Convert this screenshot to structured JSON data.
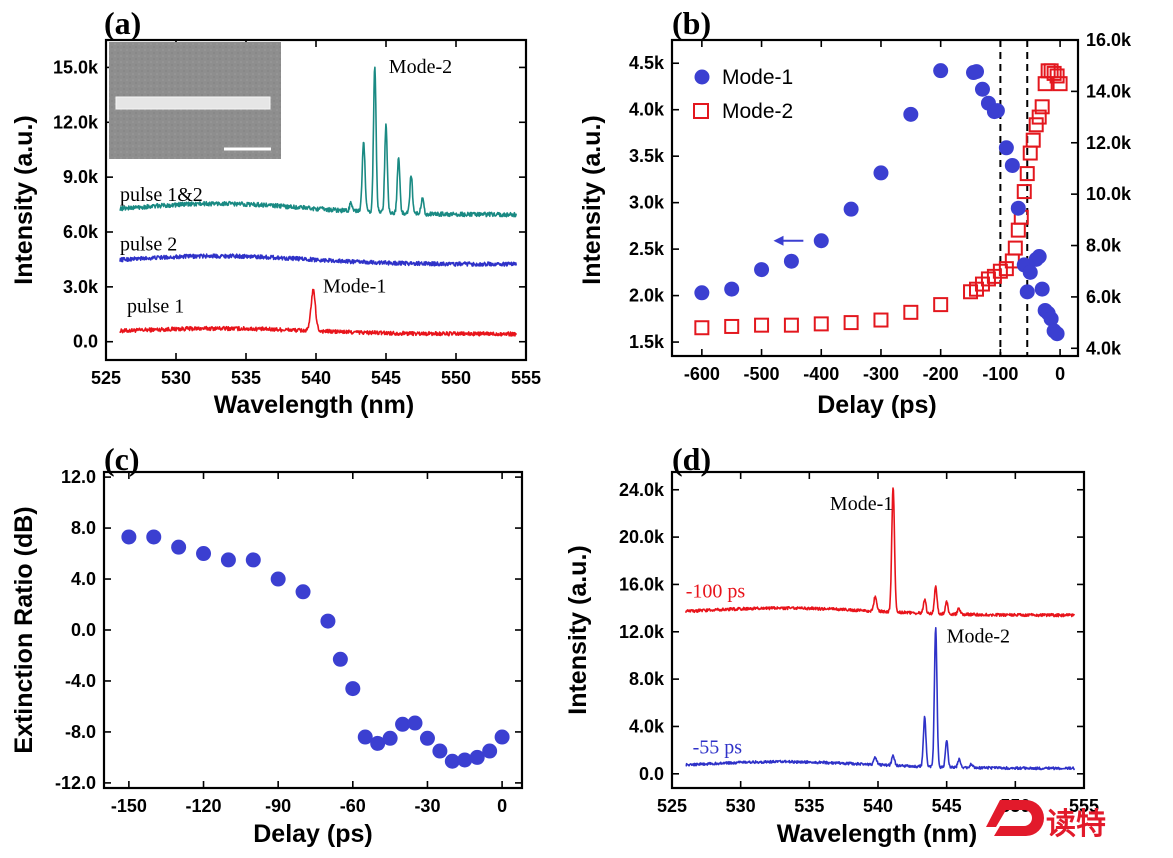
{
  "colors": {
    "red": "#e8141b",
    "blue": "#2f32c8",
    "teal": "#1a8a83",
    "blueMarker": "#3b3fd1",
    "redMarker": "#e3171e",
    "watermark": "#e21a2b"
  },
  "watermark": {
    "icon": "d-logo-icon",
    "text": "读特"
  },
  "chart_data": [
    {
      "panel": "(a)",
      "type": "line",
      "xlabel": "Wavelength (nm)",
      "ylabel": "Intensity (a.u.)",
      "xlim": [
        525,
        555
      ],
      "ylim": [
        -1000,
        16500
      ],
      "xticks": [
        525,
        530,
        535,
        540,
        545,
        550,
        555
      ],
      "xtick_labels": [
        "525",
        "530",
        "535",
        "540",
        "545",
        "550",
        "555"
      ],
      "yticks": [
        0,
        3000,
        6000,
        9000,
        12000,
        15000
      ],
      "ytick_labels": [
        "0.0",
        "3.0k",
        "6.0k",
        "9.0k",
        "12.0k",
        "15.0k"
      ],
      "inset": {
        "description_icon": "sem-image-icon"
      },
      "series": [
        {
          "name": "pulse 1",
          "color": "red",
          "baseline": 500,
          "hump": 300,
          "noise": 110,
          "peaks": [
            [
              539.8,
              2200,
              0.22
            ]
          ]
        },
        {
          "name": "pulse 2",
          "color": "blue",
          "baseline": 4350,
          "hump": 450,
          "noise": 110,
          "peaks": []
        },
        {
          "name": "pulse 1&2",
          "color": "teal",
          "baseline": 7100,
          "hump": 600,
          "noise": 120,
          "peaks": [
            [
              542.5,
              500,
              0.12
            ],
            [
              543.4,
              3800,
              0.14
            ],
            [
              544.2,
              8000,
              0.13
            ],
            [
              545.0,
              4800,
              0.13
            ],
            [
              545.9,
              3000,
              0.13
            ],
            [
              546.8,
              2100,
              0.13
            ],
            [
              547.6,
              900,
              0.13
            ]
          ]
        }
      ],
      "labels": [
        {
          "text": "pulse 1&2",
          "x": 526,
          "y": 7700
        },
        {
          "text": "pulse 2",
          "x": 526,
          "y": 5000
        },
        {
          "text": "pulse 1",
          "x": 526.5,
          "y": 1600
        },
        {
          "text": "Mode-1",
          "x": 540.5,
          "y": 2700
        },
        {
          "text": "Mode-2",
          "x": 545.2,
          "y": 14700
        }
      ]
    },
    {
      "panel": "(b)",
      "type": "scatter",
      "xlabel": "Delay (ps)",
      "ylabel": "Intensity (a.u.)",
      "xlim": [
        -650,
        30
      ],
      "ylim": [
        1350,
        4750
      ],
      "y2lim": [
        3700,
        16000
      ],
      "xticks": [
        -600,
        -500,
        -400,
        -300,
        -200,
        -100,
        0
      ],
      "xtick_labels": [
        "-600",
        "-500",
        "-400",
        "-300",
        "-200",
        "-100",
        "0"
      ],
      "yticks": [
        1500,
        2000,
        2500,
        3000,
        3500,
        4000,
        4500
      ],
      "ytick_labels": [
        "1.5k",
        "2.0k",
        "2.5k",
        "3.0k",
        "3.5k",
        "4.0k",
        "4.5k"
      ],
      "y2ticks": [
        4000,
        6000,
        8000,
        10000,
        12000,
        14000,
        16000
      ],
      "y2tick_labels": [
        "4.0k",
        "6.0k",
        "8.0k",
        "10.0k",
        "12.0k",
        "14.0k",
        "16.0k"
      ],
      "vlines": [
        -100,
        -55
      ],
      "legend": {
        "placement": "top-left"
      },
      "series": [
        {
          "name": "Mode-1",
          "marker": "filled-circle",
          "axis": "left",
          "color": "blueMarker",
          "x": [
            -600,
            -550,
            -500,
            -450,
            -400,
            -350,
            -300,
            -250,
            -200,
            -145,
            -140,
            -130,
            -120,
            -110,
            -105,
            -90,
            -80,
            -70,
            -60,
            -55,
            -50,
            -40,
            -35,
            -30,
            -25,
            -20,
            -15,
            -10,
            -5
          ],
          "y": [
            2030,
            2070,
            2280,
            2370,
            2590,
            2930,
            3320,
            3950,
            4420,
            4400,
            4410,
            4220,
            4070,
            3980,
            3990,
            3590,
            3400,
            2940,
            2330,
            2040,
            2250,
            2390,
            2420,
            2070,
            1840,
            1810,
            1750,
            1620,
            1590
          ]
        },
        {
          "name": "Mode-2",
          "marker": "open-square",
          "axis": "right",
          "color": "redMarker",
          "x": [
            -600,
            -550,
            -500,
            -450,
            -400,
            -350,
            -300,
            -250,
            -200,
            -150,
            -140,
            -130,
            -120,
            -110,
            -100,
            -90,
            -80,
            -75,
            -70,
            -65,
            -60,
            -55,
            -50,
            -45,
            -40,
            -35,
            -30,
            -25,
            -20,
            -15,
            -10,
            -5,
            0
          ],
          "y": [
            4800,
            4850,
            4900,
            4900,
            4950,
            5000,
            5100,
            5400,
            5700,
            6200,
            6300,
            6500,
            6700,
            6800,
            7000,
            7100,
            7400,
            7900,
            8600,
            9100,
            10100,
            10800,
            11600,
            12100,
            12700,
            13000,
            13400,
            14300,
            14800,
            14800,
            14700,
            14600,
            14300
          ]
        }
      ],
      "arrow": {
        "from_x": -430,
        "to_x": -480,
        "y": 2590
      }
    },
    {
      "panel": "(c)",
      "type": "scatter",
      "xlabel": "Delay (ps)",
      "ylabel": "Extinction Ratio (dB)",
      "xlim": [
        -160,
        8
      ],
      "ylim": [
        -12.4,
        12.4
      ],
      "xticks": [
        -150,
        -120,
        -90,
        -60,
        -30,
        0
      ],
      "xtick_labels": [
        "-150",
        "-120",
        "-90",
        "-60",
        "-30",
        "0"
      ],
      "yticks": [
        -12,
        -8,
        -4,
        0,
        4,
        8,
        12
      ],
      "ytick_labels": [
        "-12.0",
        "-8.0",
        "-4.0",
        "0.0",
        "4.0",
        "8.0",
        "12.0"
      ],
      "series": [
        {
          "marker": "filled-circle",
          "color": "blueMarker",
          "x": [
            -150,
            -140,
            -130,
            -120,
            -110,
            -100,
            -90,
            -80,
            -70,
            -65,
            -60,
            -55,
            -50,
            -45,
            -40,
            -35,
            -30,
            -25,
            -20,
            -15,
            -10,
            -5,
            0
          ],
          "y": [
            7.3,
            7.3,
            6.5,
            6.0,
            5.5,
            5.5,
            4.0,
            3.0,
            0.7,
            -2.3,
            -4.6,
            -8.4,
            -8.9,
            -8.5,
            -7.4,
            -7.3,
            -8.5,
            -9.5,
            -10.3,
            -10.2,
            -10.0,
            -9.5,
            -8.4
          ]
        }
      ]
    },
    {
      "panel": "(d)",
      "type": "line",
      "xlabel": "Wavelength (nm)",
      "ylabel": "Intensity (a.u.)",
      "xlim": [
        525,
        555
      ],
      "ylim": [
        -1200,
        25500
      ],
      "xticks": [
        525,
        530,
        535,
        540,
        545,
        550,
        555
      ],
      "xtick_labels": [
        "525",
        "530",
        "535",
        "540",
        "545",
        "550",
        "555"
      ],
      "yticks": [
        0,
        4000,
        8000,
        12000,
        16000,
        20000,
        24000
      ],
      "ytick_labels": [
        "0.0",
        "4.0k",
        "8.0k",
        "12.0k",
        "16.0k",
        "20.0k",
        "24.0k"
      ],
      "series": [
        {
          "name": "-100 ps",
          "color": "red",
          "baseline": 13550,
          "hump": 600,
          "noise": 120,
          "peaks": [
            [
              539.8,
              1200,
              0.15
            ],
            [
              541.1,
              10600,
              0.14
            ],
            [
              543.4,
              1200,
              0.13
            ],
            [
              544.2,
              2400,
              0.13
            ],
            [
              545.0,
              1000,
              0.13
            ],
            [
              545.9,
              500,
              0.13
            ]
          ]
        },
        {
          "name": "-55 ps",
          "color": "blue",
          "baseline": 600,
          "hump": 550,
          "noise": 110,
          "peaks": [
            [
              539.8,
              600,
              0.15
            ],
            [
              541.1,
              800,
              0.15
            ],
            [
              543.4,
              4200,
              0.13
            ],
            [
              544.2,
              11800,
              0.13
            ],
            [
              545.0,
              2300,
              0.13
            ],
            [
              545.9,
              700,
              0.13
            ],
            [
              546.8,
              300,
              0.13
            ]
          ]
        }
      ],
      "labels": [
        {
          "text": "Mode-1",
          "x": 536.5,
          "y": 22300,
          "color": "#000"
        },
        {
          "text": "Mode-2",
          "x": 545.0,
          "y": 11100,
          "color": "#000"
        },
        {
          "text": "-100 ps",
          "x": 526.0,
          "y": 14900,
          "color": "red"
        },
        {
          "text": "-55 ps",
          "x": 526.5,
          "y": 1700,
          "color": "blue"
        }
      ]
    }
  ]
}
